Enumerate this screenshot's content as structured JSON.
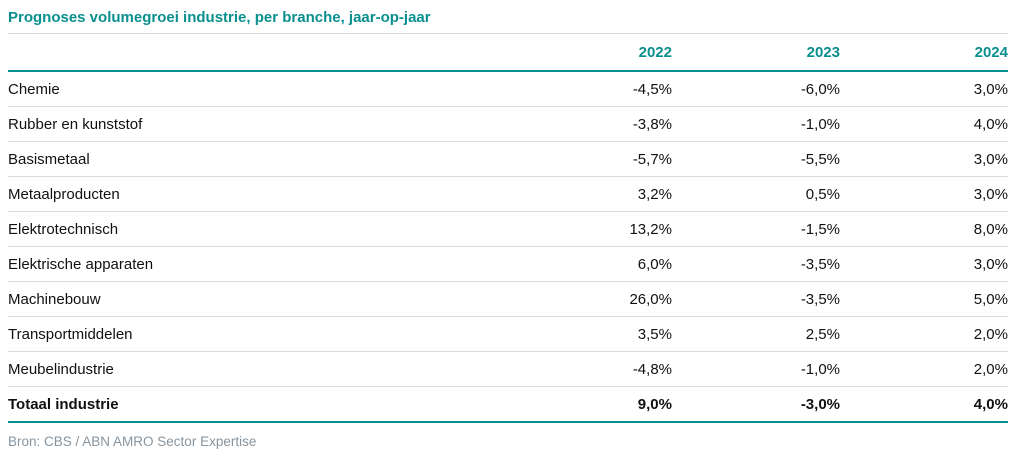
{
  "title": "Prognoses volumegroei industrie, per branche, jaar-op-jaar",
  "source": "Bron: CBS / ABN AMRO Sector Expertise",
  "colors": {
    "accent_teal": "#0A8F8F",
    "row_divider": "#DCDCDC",
    "title_divider": "#D9D9D9",
    "source_text": "#8795A0",
    "body_text": "#111111"
  },
  "table": {
    "columns": [
      "2022",
      "2023",
      "2024"
    ],
    "rows": [
      {
        "label": "Chemie",
        "values": [
          "-4,5%",
          "-6,0%",
          "3,0%"
        ],
        "bold": false
      },
      {
        "label": "Rubber en kunststof",
        "values": [
          "-3,8%",
          "-1,0%",
          "4,0%"
        ],
        "bold": false
      },
      {
        "label": "Basismetaal",
        "values": [
          "-5,7%",
          "-5,5%",
          "3,0%"
        ],
        "bold": false
      },
      {
        "label": "Metaalproducten",
        "values": [
          "3,2%",
          "0,5%",
          "3,0%"
        ],
        "bold": false
      },
      {
        "label": "Elektrotechnisch",
        "values": [
          "13,2%",
          "-1,5%",
          "8,0%"
        ],
        "bold": false
      },
      {
        "label": "Elektrische apparaten",
        "values": [
          "6,0%",
          "-3,5%",
          "3,0%"
        ],
        "bold": false
      },
      {
        "label": "Machinebouw",
        "values": [
          "26,0%",
          "-3,5%",
          "5,0%"
        ],
        "bold": false
      },
      {
        "label": "Transportmiddelen",
        "values": [
          "3,5%",
          "2,5%",
          "2,0%"
        ],
        "bold": false
      },
      {
        "label": "Meubelindustrie",
        "values": [
          "-4,8%",
          "-1,0%",
          "2,0%"
        ],
        "bold": false
      },
      {
        "label": "Totaal industrie",
        "values": [
          "9,0%",
          "-3,0%",
          "4,0%"
        ],
        "bold": true
      }
    ]
  },
  "chart_data": {
    "type": "table",
    "title": "Prognoses volumegroei industrie, per branche, jaar-op-jaar",
    "categories": [
      "Chemie",
      "Rubber en kunststof",
      "Basismetaal",
      "Metaalproducten",
      "Elektrotechnisch",
      "Elektrische apparaten",
      "Machinebouw",
      "Transportmiddelen",
      "Meubelindustrie",
      "Totaal industrie"
    ],
    "series": [
      {
        "name": "2022",
        "values": [
          -4.5,
          -3.8,
          -5.7,
          3.2,
          13.2,
          6.0,
          26.0,
          3.5,
          -4.8,
          9.0
        ]
      },
      {
        "name": "2023",
        "values": [
          -6.0,
          -1.0,
          -5.5,
          0.5,
          -1.5,
          -3.5,
          -3.5,
          2.5,
          -1.0,
          -3.0
        ]
      },
      {
        "name": "2024",
        "values": [
          3.0,
          4.0,
          3.0,
          3.0,
          8.0,
          3.0,
          5.0,
          2.0,
          2.0,
          4.0
        ]
      }
    ],
    "unit": "%",
    "decimal_separator": ",",
    "source": "Bron: CBS / ABN AMRO Sector Expertise"
  }
}
